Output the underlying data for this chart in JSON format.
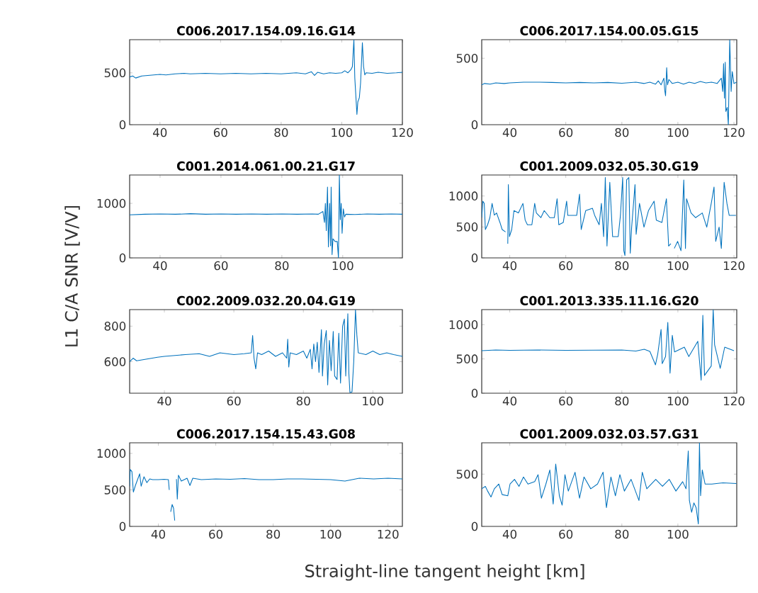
{
  "chart_data": [
    {
      "type": "line",
      "title": "C006.2017.154.09.16.G14",
      "color": "#0072bd",
      "xlim": [
        30,
        120
      ],
      "ylim": [
        0,
        820
      ],
      "xticks": [
        40,
        60,
        80,
        100,
        120
      ],
      "yticks": [
        0,
        500
      ],
      "x": [
        30,
        31,
        32,
        34,
        36,
        38,
        40,
        42,
        45,
        48,
        50,
        55,
        60,
        65,
        70,
        75,
        80,
        85,
        88,
        90,
        91,
        92,
        94,
        96,
        98,
        100,
        101,
        102,
        103,
        103.5,
        104,
        104.3,
        105,
        105.3,
        105.8,
        106.2,
        106.8,
        107.2,
        107.6,
        108,
        110,
        112,
        115,
        118,
        120
      ],
      "values": [
        460,
        470,
        450,
        470,
        475,
        480,
        485,
        480,
        490,
        495,
        490,
        495,
        490,
        495,
        490,
        495,
        490,
        500,
        490,
        510,
        475,
        505,
        490,
        500,
        495,
        500,
        520,
        500,
        530,
        560,
        820,
        450,
        100,
        220,
        260,
        400,
        790,
        560,
        480,
        500,
        495,
        505,
        495,
        500,
        505
      ]
    },
    {
      "type": "line",
      "title": "C006.2017.154.00.05.G15",
      "color": "#0072bd",
      "xlim": [
        30,
        121
      ],
      "ylim": [
        0,
        640
      ],
      "xticks": [
        40,
        60,
        80,
        100,
        120
      ],
      "yticks": [
        0,
        500
      ],
      "x": [
        30,
        31,
        33,
        35,
        38,
        40,
        45,
        50,
        55,
        60,
        65,
        70,
        75,
        80,
        85,
        88,
        90,
        92,
        93,
        94,
        95,
        95.3,
        95.6,
        96,
        96.3,
        96.8,
        98,
        100,
        102,
        104,
        106,
        108,
        110,
        112,
        114,
        115.5,
        116,
        116.3,
        116.6,
        116.9,
        117.1,
        117.6,
        118,
        118.5,
        119,
        119.4,
        120,
        121
      ],
      "values": [
        300,
        310,
        305,
        315,
        310,
        315,
        320,
        320,
        318,
        315,
        318,
        315,
        318,
        312,
        320,
        310,
        320,
        305,
        330,
        300,
        350,
        260,
        217,
        429,
        300,
        340,
        310,
        320,
        305,
        320,
        310,
        325,
        315,
        320,
        310,
        350,
        250,
        460,
        200,
        470,
        100,
        130,
        0,
        640,
        250,
        400,
        310,
        320
      ]
    },
    {
      "type": "line",
      "title": "C001.2014.061.00.21.G17",
      "ylabel": "L1 C/A SNR [V/V]",
      "color": "#0072bd",
      "xlim": [
        30,
        119.6
      ],
      "ylim": [
        0,
        1520
      ],
      "xticks": [
        40,
        60,
        80,
        100
      ],
      "yticks": [
        0,
        1000
      ],
      "x": [
        30,
        35,
        40,
        45,
        50,
        55,
        60,
        65,
        70,
        75,
        80,
        85,
        90,
        92,
        93.5,
        94,
        94.3,
        94.6,
        95,
        95.3,
        95.7,
        96,
        96.2,
        96.5,
        96.8,
        97.5,
        98.2,
        98.6,
        98.9,
        99.2,
        99.5,
        99.8,
        100.2,
        100.6,
        101,
        104,
        108,
        112,
        116,
        119.6
      ],
      "values": [
        790,
        800,
        805,
        800,
        810,
        800,
        805,
        800,
        805,
        800,
        805,
        800,
        805,
        800,
        850,
        650,
        1000,
        500,
        1300,
        200,
        1000,
        220,
        1300,
        60,
        350,
        300,
        300,
        0,
        1520,
        700,
        1000,
        450,
        900,
        750,
        800,
        795,
        805,
        800,
        805,
        800
      ]
    },
    {
      "type": "line",
      "title": "C001.2009.032.05.30.G19",
      "color": "#0072bd",
      "xlim": [
        30,
        121
      ],
      "ylim": [
        0,
        1340
      ],
      "xticks": [
        40,
        60,
        80,
        100,
        120
      ],
      "yticks": [
        0,
        500,
        1000
      ],
      "x": [
        30,
        30.4,
        30.9,
        31.3,
        32.1,
        32.9,
        33.7,
        34.5,
        35.3,
        36.5,
        37.3,
        38.5,
        38.9,
        39.3,
        39.5,
        39.9,
        40.7,
        41.5,
        43.1,
        44.7,
        45.5,
        46.3,
        47.9,
        48.9,
        49.5,
        51.1,
        52.3,
        54.3,
        55.9,
        56.9,
        57.5,
        59.1,
        60.3,
        60.7,
        63.9,
        64.9,
        65.5,
        67.1,
        69.5,
        70.3,
        71.9,
        72.7,
        73.5,
        74.1,
        74.7,
        75.7,
        76.7,
        78.7,
        79.5,
        80.3,
        80.7,
        81.1,
        81.7,
        82.5,
        83,
        83.5,
        84.7,
        85.1,
        86.3,
        87.9,
        89.5,
        91.5,
        92.3,
        94.3,
        95.9,
        96.7,
        97.5,
        98.1,
        98.7,
        99.9,
        101.1,
        102.1,
        102.7,
        103.1,
        104.7,
        106.3,
        108.7,
        110.3,
        111.9,
        112.9,
        113.5,
        114.7,
        115.5,
        116.5,
        117.5,
        118.3,
        120.7
      ],
      "values": [
        650,
        917,
        880,
        458,
        535,
        650,
        880,
        690,
        725,
        573,
        458,
        420,
        null,
        229,
        1184,
        344,
        458,
        764,
        726,
        880,
        611,
        535,
        535,
        880,
        726,
        650,
        764,
        650,
        650,
        955,
        535,
        573,
        917,
        688,
        688,
        1031,
        458,
        764,
        802,
        688,
        535,
        880,
        344,
        1299,
        191,
        1222,
        344,
        344,
        688,
        1299,
        115,
        38,
        1260,
        1299,
        76,
        497,
        1184,
        382,
        880,
        497,
        764,
        917,
        611,
        573,
        955,
        191,
        229,
        null,
        153,
        267,
        115,
        1260,
        153,
        955,
        726,
        650,
        726,
        497,
        880,
        1146,
        267,
        497,
        153,
        1222,
        880,
        688,
        688
      ]
    },
    {
      "type": "line",
      "title": "C002.2009.032.20.04.G19",
      "color": "#0072bd",
      "xlim": [
        30,
        108.5
      ],
      "ylim": [
        423,
        893
      ],
      "xticks": [
        40,
        60,
        80,
        100
      ],
      "yticks": [
        600,
        800
      ],
      "x": [
        30,
        31,
        32,
        35,
        38,
        40,
        43,
        46,
        50,
        53,
        56,
        60,
        63,
        65,
        65.4,
        65.8,
        66.3,
        66.8,
        68,
        70,
        72,
        74,
        75.2,
        75.5,
        75.8,
        76.2,
        78,
        80,
        81,
        82,
        82.5,
        83,
        83.5,
        84,
        84.5,
        85.2,
        85.5,
        86,
        86.6,
        87,
        87.5,
        88,
        88.6,
        89,
        89.7,
        90.2,
        90.7,
        91.3,
        91.8,
        92.2,
        92.8,
        93.1,
        93.4,
        94,
        94.5,
        95,
        95.4,
        95.8,
        98,
        100,
        102,
        104,
        106,
        108.5
      ],
      "values": [
        600,
        620,
        605,
        615,
        625,
        630,
        635,
        640,
        645,
        630,
        650,
        640,
        645,
        650,
        747,
        620,
        560,
        650,
        640,
        660,
        630,
        650,
        620,
        727,
        570,
        650,
        640,
        660,
        620,
        670,
        560,
        700,
        600,
        710,
        540,
        780,
        520,
        700,
        775,
        470,
        720,
        550,
        770,
        520,
        500,
        760,
        480,
        800,
        840,
        520,
        870,
        533,
        427,
        430,
        600,
        893,
        750,
        650,
        640,
        660,
        640,
        650,
        640,
        630
      ]
    },
    {
      "type": "line",
      "title": "C001.2013.335.11.16.G20",
      "color": "#0072bd",
      "xlim": [
        30,
        121
      ],
      "ylim": [
        0,
        1220
      ],
      "xticks": [
        40,
        60,
        80,
        100,
        120
      ],
      "yticks": [
        0,
        500,
        1000
      ],
      "x": [
        30,
        35,
        40,
        50,
        60,
        70,
        80,
        85,
        88,
        90,
        92,
        92.8,
        94,
        94.4,
        95.6,
        96.4,
        97.2,
        98,
        98.8,
        102.3,
        103.9,
        107.1,
        108.3,
        108.9,
        109.5,
        111.9,
        112.6,
        113.1,
        115.1,
        116.7,
        120
      ],
      "values": [
        620,
        630,
        625,
        630,
        625,
        628,
        630,
        615,
        640,
        610,
        414,
        569,
        931,
        431,
        534,
        1034,
        293,
        845,
        603,
        672,
        534,
        758,
        190,
        1138,
        259,
        396,
        1220,
        707,
        362,
        672,
        620
      ]
    },
    {
      "type": "line",
      "title": "C006.2017.154.15.43.G08",
      "xlabel": "Straight-line tangent height [km]",
      "color": "#0072bd",
      "xlim": [
        30,
        125
      ],
      "ylim": [
        0,
        1145
      ],
      "xticks": [
        40,
        60,
        80,
        100,
        120
      ],
      "yticks": [
        0,
        500,
        1000
      ],
      "x": [
        30,
        30.2,
        30.8,
        31.3,
        32,
        33.5,
        34,
        35,
        36,
        37,
        38,
        40,
        42,
        43.5,
        43.8,
        44,
        44.3,
        44.8,
        45.3,
        45.7,
        46,
        46.3,
        46.6,
        47,
        48,
        50,
        51,
        52,
        55,
        60,
        65,
        70,
        75,
        80,
        85,
        90,
        95,
        100,
        105,
        110,
        115,
        120,
        125
      ],
      "values": [
        548,
        780,
        750,
        470,
        560,
        720,
        550,
        680,
        600,
        650,
        640,
        640,
        645,
        640,
        500,
        null,
        200,
        300,
        250,
        80,
        null,
        648,
        373,
        700,
        620,
        660,
        560,
        660,
        640,
        650,
        645,
        655,
        640,
        640,
        650,
        650,
        645,
        640,
        620,
        660,
        650,
        660,
        650
      ]
    },
    {
      "type": "line",
      "title": "C001.2009.032.03.57.G31",
      "color": "#0072bd",
      "xlim": [
        30,
        121
      ],
      "ylim": [
        0,
        800
      ],
      "xticks": [
        40,
        60,
        80,
        100
      ],
      "yticks": [
        0,
        500
      ],
      "x": [
        30,
        31.3,
        32.1,
        33.3,
        34.5,
        36.1,
        37.3,
        39.3,
        40.1,
        41.7,
        43.3,
        44.9,
        46.5,
        48.9,
        50.1,
        51.3,
        52.9,
        54.3,
        55.5,
        56.4,
        57.7,
        58.7,
        59.7,
        60.9,
        63.3,
        64.9,
        66.5,
        68.9,
        71.3,
        73.3,
        74.5,
        76.1,
        77.7,
        79.3,
        80.9,
        83.3,
        86.1,
        87.3,
        88.9,
        92.1,
        94.5,
        96.9,
        99.3,
        101.7,
        102.9,
        103.7,
        104.1,
        104.9,
        105.7,
        106.5,
        107.3,
        107.7,
        108.1,
        108.7,
        109.7,
        112.1,
        116.1,
        120.9
      ],
      "values": [
        360,
        383,
        338,
        281,
        360,
        405,
        304,
        293,
        405,
        450,
        383,
        473,
        405,
        428,
        495,
        270,
        405,
        540,
        214,
        597,
        293,
        203,
        495,
        338,
        518,
        270,
        473,
        360,
        405,
        518,
        180,
        473,
        293,
        495,
        338,
        450,
        248,
        518,
        360,
        450,
        383,
        450,
        338,
        428,
        360,
        721,
        248,
        135,
        225,
        180,
        23,
        800,
        293,
        540,
        405,
        405,
        417,
        410
      ]
    }
  ]
}
